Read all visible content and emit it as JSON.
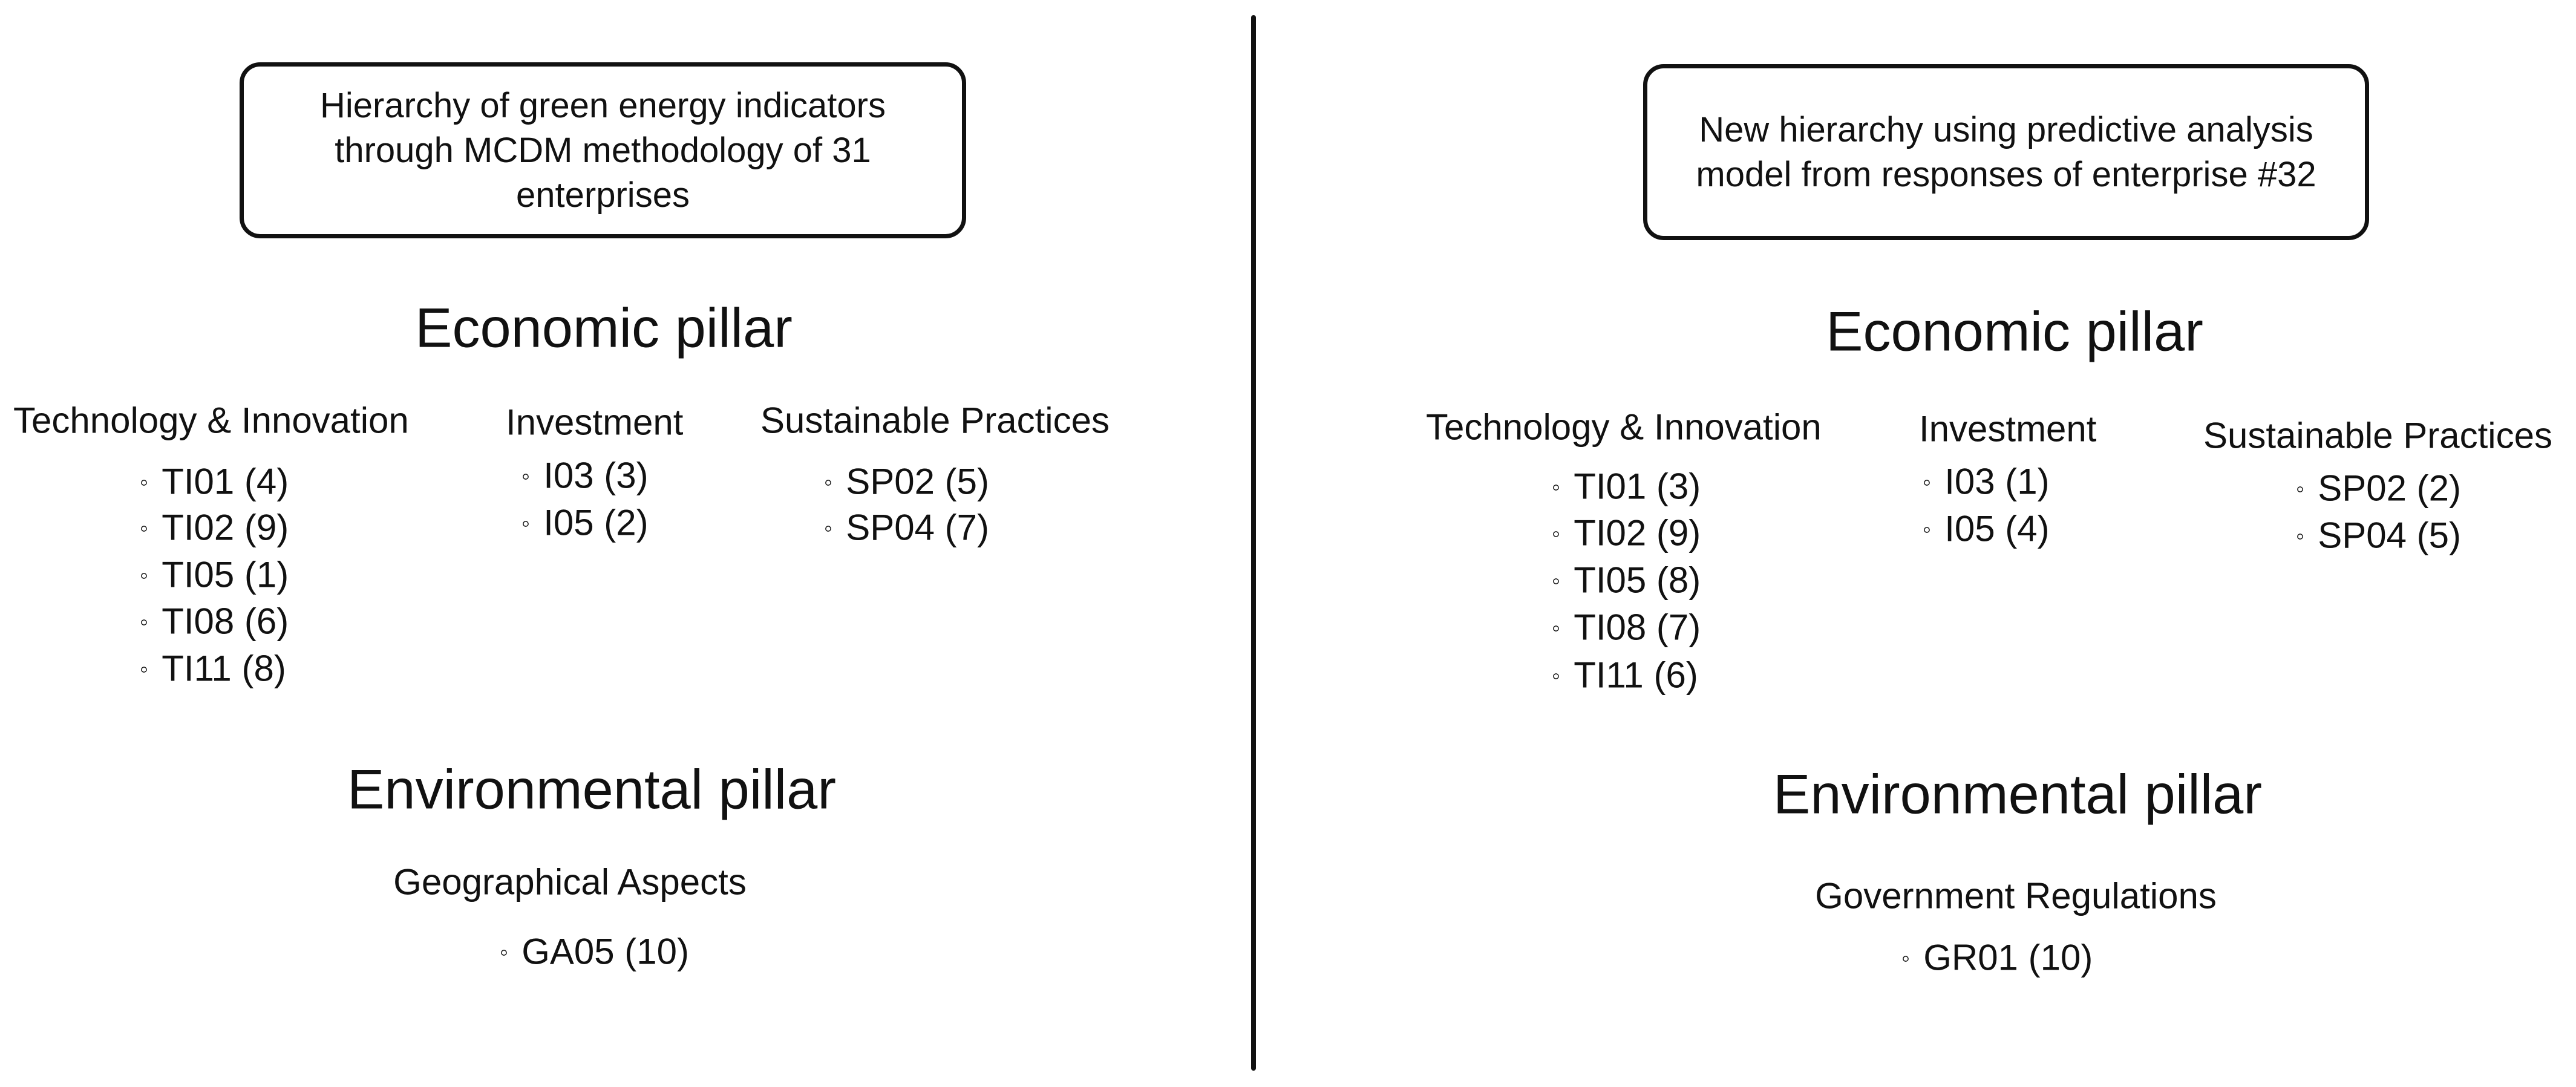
{
  "left": {
    "title": "Hierarchy of green energy indicators through MCDM methodology of 31 enterprises",
    "economic": {
      "title": "Economic pillar",
      "categories": [
        {
          "name": "Technology & Innovation",
          "items": [
            "TI01 (4)",
            "TI02 (9)",
            "TI05 (1)",
            "TI08 (6)",
            "TI11 (8)"
          ]
        },
        {
          "name": "Investment",
          "items": [
            "I03 (3)",
            "I05 (2)"
          ]
        },
        {
          "name": "Sustainable Practices",
          "items": [
            "SP02 (5)",
            "SP04 (7)"
          ]
        }
      ]
    },
    "environmental": {
      "title": "Environmental pillar",
      "categories": [
        {
          "name": "Geographical Aspects",
          "items": [
            "GA05 (10)"
          ]
        }
      ]
    }
  },
  "right": {
    "title": "New hierarchy using predictive analysis model from responses of enterprise #32",
    "economic": {
      "title": "Economic pillar",
      "categories": [
        {
          "name": "Technology & Innovation",
          "items": [
            "TI01 (3)",
            "TI02 (9)",
            "TI05 (8)",
            "TI08 (7)",
            "TI11 (6)"
          ]
        },
        {
          "name": "Investment",
          "items": [
            "I03 (1)",
            "I05 (4)"
          ]
        },
        {
          "name": "Sustainable Practices",
          "items": [
            "SP02 (2)",
            "SP04 (5)"
          ]
        }
      ]
    },
    "environmental": {
      "title": "Environmental pillar",
      "categories": [
        {
          "name": "Government Regulations",
          "items": [
            "GR01 (10)"
          ]
        }
      ]
    }
  },
  "bullet_icon": "◦"
}
